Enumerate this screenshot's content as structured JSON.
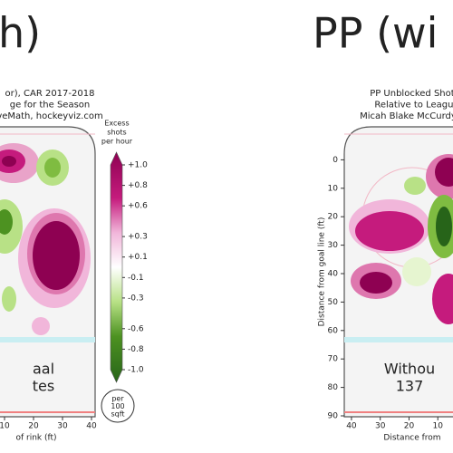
{
  "chart_data": [
    {
      "type": "contour",
      "title": "h)",
      "subtitle": [
        "or), CAR 2017-2018",
        "ge for the Season",
        "veMath, hockeyviz.com"
      ],
      "xlabel": "of rink (ft)",
      "xlim": [
        -42.5,
        42.5
      ],
      "xticks": [
        10,
        20,
        30,
        40
      ],
      "ylim": [
        -10,
        90
      ],
      "annotation": [
        "aal",
        "tes"
      ],
      "colorbar": {
        "title": [
          "Excess",
          "shots",
          "per hour"
        ],
        "ticks": [
          {
            "value": 1.0,
            "label": "+1.0"
          },
          {
            "value": 0.8,
            "label": "+0.8"
          },
          {
            "value": 0.6,
            "label": "+0.6"
          },
          {
            "value": 0.3,
            "label": "+0.3"
          },
          {
            "value": 0.1,
            "label": "+0.1"
          },
          {
            "value": -0.1,
            "label": "-0.1"
          },
          {
            "value": -0.3,
            "label": "-0.3"
          },
          {
            "value": -0.6,
            "label": "-0.6"
          },
          {
            "value": -0.8,
            "label": "-0.8"
          },
          {
            "value": -1.0,
            "label": "-1.0"
          }
        ],
        "unit": [
          "per",
          "100",
          "sqft"
        ]
      }
    },
    {
      "type": "contour",
      "title": "PP (wi",
      "subtitle": [
        "PP Unblocked Shot R",
        "Relative to League",
        "Micah Blake McCurdy, @l"
      ],
      "xlabel": "Distance from",
      "ylabel": "Distance from goal line (ft)",
      "xlim": [
        42.5,
        -42.5
      ],
      "xticks": [
        40,
        30,
        20,
        10
      ],
      "ylim": [
        -10,
        90
      ],
      "yticks": [
        0,
        10,
        20,
        30,
        40,
        50,
        60,
        70,
        80,
        90
      ],
      "annotation": [
        "Withou",
        "137"
      ]
    }
  ]
}
